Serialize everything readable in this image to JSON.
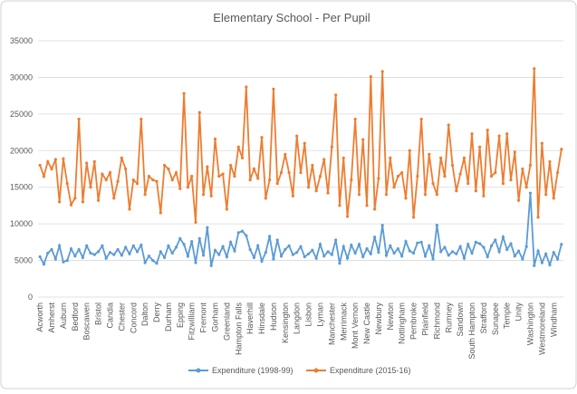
{
  "chart_data": {
    "type": "line",
    "title": "Elementary School - Per Pupil",
    "categories": [
      "Acworth",
      null,
      null,
      "Amherst",
      null,
      null,
      "Auburn",
      null,
      null,
      "Bedford",
      null,
      null,
      "Boscawen",
      null,
      null,
      "Bristol",
      null,
      null,
      "Candia",
      null,
      null,
      "Chester",
      null,
      null,
      "Concord",
      null,
      null,
      "Dalton",
      null,
      null,
      "Derry",
      null,
      null,
      "Durham",
      null,
      null,
      "Epping",
      null,
      null,
      "Fitzwilliam",
      null,
      null,
      "Fremont",
      null,
      null,
      "Gorham",
      null,
      null,
      "Greenland",
      null,
      null,
      "Hampton Falls",
      null,
      null,
      "Haverhill",
      null,
      null,
      "Hinsdale",
      null,
      null,
      "Hudson",
      null,
      null,
      "Kensington",
      null,
      null,
      "Langdon",
      null,
      null,
      "Lisbon",
      null,
      null,
      "Lyman",
      null,
      null,
      "Manchester",
      null,
      null,
      "Merrimack",
      null,
      null,
      "Mont Vernon",
      null,
      null,
      "New Castle",
      null,
      null,
      "Newbury",
      null,
      null,
      "Newton",
      null,
      null,
      "Nottingham",
      null,
      null,
      "Pembroke",
      null,
      null,
      "Plainfield",
      null,
      null,
      "Richmond",
      null,
      null,
      "Rumney",
      null,
      null,
      "Sandown",
      null,
      null,
      "South Hampton",
      null,
      null,
      "Strafford",
      null,
      null,
      "Sunapee",
      null,
      null,
      "Temple",
      null,
      null,
      "Unity",
      null,
      null,
      "Washington",
      null,
      null,
      "Westmoreland",
      null,
      null,
      "Windham",
      null,
      null
    ],
    "series": [
      {
        "name": "Expenditure (1998-99)",
        "color": "#5b9bd5",
        "values": [
          5500,
          4500,
          6000,
          6500,
          5200,
          7000,
          4800,
          5000,
          6600,
          5600,
          6500,
          5400,
          7000,
          6000,
          5800,
          6200,
          7000,
          5300,
          6100,
          5800,
          6500,
          5700,
          6800,
          5900,
          7000,
          6200,
          7100,
          4700,
          5600,
          5000,
          4600,
          6200,
          5400,
          7000,
          6000,
          6800,
          8000,
          7200,
          5600,
          7600,
          4700,
          8000,
          5700,
          9500,
          4300,
          6400,
          5800,
          6900,
          5500,
          7500,
          6300,
          8800,
          9000,
          8400,
          6500,
          5400,
          7000,
          4900,
          6100,
          8300,
          5200,
          7800,
          5600,
          6500,
          7000,
          5800,
          6100,
          6900,
          5500,
          5900,
          6400,
          5300,
          7200,
          5600,
          6200,
          5800,
          7800,
          4600,
          6900,
          5300,
          7100,
          6000,
          7200,
          5500,
          6600,
          5900,
          8200,
          6100,
          9800,
          5700,
          7000,
          6000,
          6600,
          5600,
          7600,
          6300,
          6000,
          7400,
          7500,
          5600,
          7000,
          5200,
          9800,
          6200,
          6800,
          5700,
          6200,
          5900,
          6900,
          5300,
          7200,
          6000,
          7500,
          7300,
          6800,
          5500,
          7000,
          7800,
          6200,
          8200,
          6500,
          7300,
          5600,
          6300,
          5200,
          6900,
          14200,
          4300,
          6300,
          4700,
          5900,
          4400,
          6100,
          5200,
          7200
        ]
      },
      {
        "name": "Expenditure (2015-16)",
        "color": "#ed7d31",
        "values": [
          18000,
          16500,
          18500,
          17500,
          18800,
          13000,
          18900,
          15500,
          12600,
          13500,
          24300,
          13000,
          18300,
          15000,
          18500,
          13200,
          16800,
          16000,
          17000,
          13500,
          15800,
          19000,
          17500,
          12000,
          16000,
          15500,
          24300,
          14000,
          16500,
          16000,
          15800,
          11500,
          18000,
          17500,
          16000,
          17000,
          14800,
          27800,
          15000,
          16500,
          10200,
          25200,
          14000,
          17800,
          13800,
          21600,
          16500,
          16800,
          12000,
          18000,
          16500,
          20500,
          19000,
          28700,
          16000,
          17500,
          16200,
          21800,
          13500,
          16000,
          28400,
          15500,
          17000,
          19500,
          17000,
          13800,
          22000,
          17000,
          21000,
          15000,
          18000,
          14500,
          16500,
          18800,
          14200,
          20500,
          27600,
          12500,
          19000,
          11000,
          16000,
          24300,
          14000,
          21500,
          12500,
          30100,
          12000,
          16200,
          30800,
          14000,
          19000,
          15000,
          16500,
          17000,
          13500,
          20000,
          10900,
          16500,
          24300,
          14000,
          19500,
          15500,
          14000,
          19000,
          16500,
          23500,
          18000,
          14500,
          16800,
          19000,
          15500,
          22300,
          14500,
          20500,
          13800,
          22800,
          16500,
          17000,
          22000,
          15500,
          22300,
          16000,
          19800,
          13200,
          17500,
          15000,
          18000,
          31200,
          10900,
          21000,
          14000,
          18500,
          13500,
          17000,
          20200
        ]
      }
    ],
    "ylim": [
      0,
      35000
    ],
    "yticks": [
      0,
      5000,
      10000,
      15000,
      20000,
      25000,
      30000,
      35000
    ],
    "grid": true,
    "legend": "bottom"
  }
}
